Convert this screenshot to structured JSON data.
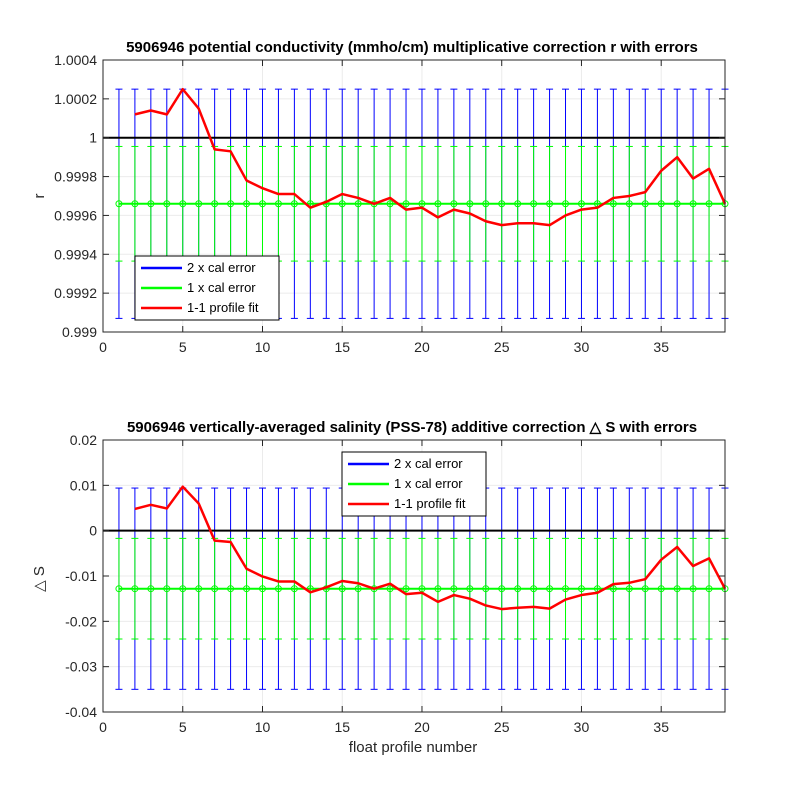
{
  "chart_data": [
    {
      "type": "line",
      "title": "5906946 potential conductivity (mmho/cm) multiplicative correction r with errors",
      "xlabel": "",
      "ylabel": "r",
      "xlim": [
        0,
        39
      ],
      "ylim": [
        0.999,
        1.0004
      ],
      "xticks": [
        "0",
        "5",
        "10",
        "15",
        "20",
        "25",
        "30",
        "35"
      ],
      "yticks": [
        "0.999",
        "0.9992",
        "0.9994",
        "0.9996",
        "0.9998",
        "1",
        "1.0002",
        "1.0004"
      ],
      "grid": true,
      "legend_position": "bottom-left",
      "reference_line": 1,
      "mean_fit": 0.99966,
      "error_2x": 0.00059,
      "error_1x": 0.000295,
      "error_x": [
        1,
        2,
        3,
        4,
        5,
        6,
        7,
        8,
        9,
        10,
        11,
        12,
        13,
        14,
        15,
        16,
        17,
        18,
        19,
        20,
        21,
        22,
        23,
        24,
        25,
        26,
        27,
        28,
        29,
        30,
        31,
        32,
        33,
        34,
        35,
        36,
        37,
        38,
        39
      ],
      "series": [
        {
          "name": "2 x cal error",
          "color": "#0000ff"
        },
        {
          "name": "1 x cal error",
          "color": "#00ff00"
        },
        {
          "name": "1-1 profile fit",
          "color": "#ff0000",
          "x": [
            2,
            3,
            4,
            5,
            6,
            7,
            8,
            9,
            10,
            11,
            12,
            13,
            14,
            15,
            16,
            17,
            18,
            19,
            20,
            21,
            22,
            23,
            24,
            25,
            26,
            27,
            28,
            29,
            30,
            31,
            32,
            33,
            34,
            35,
            36,
            37,
            38,
            39
          ],
          "y": [
            1.00012,
            1.00014,
            1.00012,
            1.00025,
            1.00015,
            0.99994,
            0.99993,
            0.99978,
            0.99974,
            0.99971,
            0.99971,
            0.99964,
            0.99967,
            0.99971,
            0.99969,
            0.99966,
            0.99969,
            0.99963,
            0.99964,
            0.99959,
            0.99963,
            0.99961,
            0.99957,
            0.99955,
            0.99956,
            0.99956,
            0.99955,
            0.9996,
            0.99963,
            0.99964,
            0.99969,
            0.9997,
            0.99972,
            0.99983,
            0.9999,
            0.99979,
            0.99984,
            0.99966
          ]
        }
      ]
    },
    {
      "type": "line",
      "title": "5906946 vertically-averaged salinity (PSS-78) additive correction △ S with errors",
      "xlabel": "float profile number",
      "ylabel": "△ S",
      "xlim": [
        0,
        39
      ],
      "ylim": [
        -0.04,
        0.02
      ],
      "xticks": [
        "0",
        "5",
        "10",
        "15",
        "20",
        "25",
        "30",
        "35"
      ],
      "yticks": [
        "-0.04",
        "-0.03",
        "-0.02",
        "-0.01",
        "0",
        "0.01",
        "0.02"
      ],
      "grid": true,
      "legend_position": "top-center",
      "reference_line": 0,
      "mean_fit": -0.0128,
      "error_2x": 0.0222,
      "error_1x": 0.0111,
      "error_x": [
        1,
        2,
        3,
        4,
        5,
        6,
        7,
        8,
        9,
        10,
        11,
        12,
        13,
        14,
        15,
        16,
        17,
        18,
        19,
        20,
        21,
        22,
        23,
        24,
        25,
        26,
        27,
        28,
        29,
        30,
        31,
        32,
        33,
        34,
        35,
        36,
        37,
        38,
        39
      ],
      "series": [
        {
          "name": "2 x cal error",
          "color": "#0000ff"
        },
        {
          "name": "1 x cal error",
          "color": "#00ff00"
        },
        {
          "name": "1-1 profile fit",
          "color": "#ff0000",
          "x": [
            2,
            3,
            4,
            5,
            6,
            7,
            8,
            9,
            10,
            11,
            12,
            13,
            14,
            15,
            16,
            17,
            18,
            19,
            20,
            21,
            22,
            23,
            24,
            25,
            26,
            27,
            28,
            29,
            30,
            31,
            32,
            33,
            34,
            35,
            36,
            37,
            38,
            39
          ],
          "y": [
            0.0048,
            0.0057,
            0.0049,
            0.0097,
            0.006,
            -0.0022,
            -0.0025,
            -0.0084,
            -0.0101,
            -0.0112,
            -0.0112,
            -0.0136,
            -0.0125,
            -0.0111,
            -0.0116,
            -0.0128,
            -0.0117,
            -0.014,
            -0.0137,
            -0.0157,
            -0.0142,
            -0.015,
            -0.0165,
            -0.0173,
            -0.017,
            -0.0168,
            -0.0172,
            -0.0152,
            -0.0142,
            -0.0137,
            -0.0118,
            -0.0115,
            -0.0107,
            -0.0064,
            -0.0036,
            -0.0078,
            -0.0061,
            -0.0128
          ]
        }
      ]
    }
  ]
}
